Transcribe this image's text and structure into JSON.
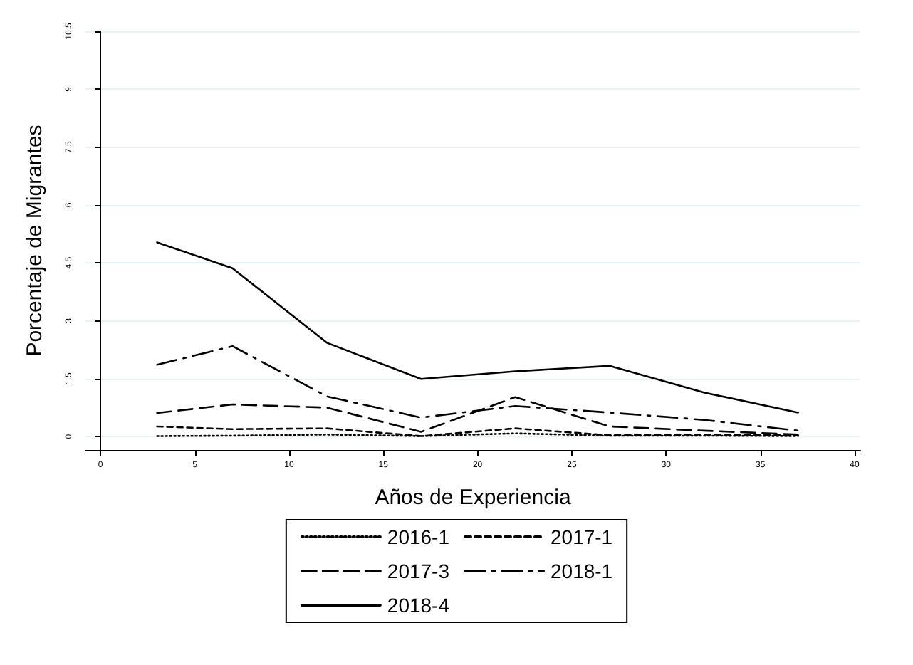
{
  "chart_data": {
    "type": "line",
    "xlabel": "Años de Experiencia",
    "ylabel": "Porcentaje de Migrantes",
    "x": [
      3,
      7,
      12,
      17,
      22,
      27,
      32,
      37
    ],
    "xlim": [
      -0.8,
      40.3
    ],
    "xticks": [
      0,
      5,
      10,
      15,
      20,
      25,
      30,
      35,
      40
    ],
    "ylim": [
      -0.35,
      10.5
    ],
    "yticks": [
      0,
      1.5,
      3,
      4.5,
      6,
      7.5,
      9,
      10.5
    ],
    "grid": "y",
    "legend": "bottom",
    "marker": "none",
    "series": [
      {
        "name": "2016-1",
        "color": "#000000",
        "line_style": "dotted",
        "values": [
          0.01,
          0.02,
          0.05,
          0.01,
          0.08,
          0.02,
          0.02,
          0.01
        ]
      },
      {
        "name": "2017-1",
        "color": "#000000",
        "line_style": "dashed",
        "values": [
          0.26,
          0.19,
          0.21,
          0.01,
          0.21,
          0.03,
          0.05,
          0.03
        ]
      },
      {
        "name": "2017-3",
        "color": "#000000",
        "line_style": "longdash",
        "values": [
          0.61,
          0.83,
          0.75,
          0.12,
          1.02,
          0.26,
          0.15,
          0.05
        ]
      },
      {
        "name": "2018-1",
        "color": "#000000",
        "line_style": "dashdot",
        "values": [
          1.86,
          2.34,
          1.04,
          0.49,
          0.79,
          0.62,
          0.43,
          0.15
        ]
      },
      {
        "name": "2018-4",
        "color": "#000000",
        "line_style": "solid",
        "values": [
          5.03,
          4.36,
          2.43,
          1.49,
          1.69,
          1.83,
          1.14,
          0.62
        ]
      }
    ]
  }
}
